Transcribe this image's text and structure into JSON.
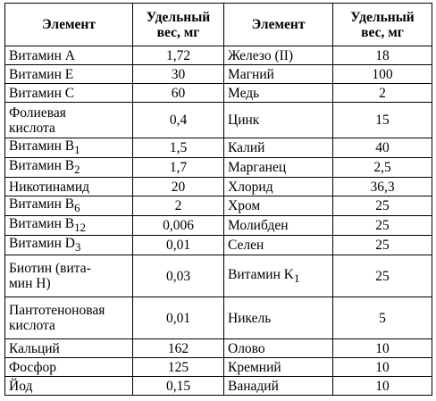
{
  "headers": {
    "element1": "Элемент",
    "weight1_line1": "Удельный",
    "weight1_line2": "вес, мг",
    "element2": "Элемент",
    "weight2_line1": "Удельный",
    "weight2_line2": "вес, мг"
  },
  "rows": [
    {
      "n1": "Витамин A",
      "s1": "",
      "v1": "1,72",
      "n2": "Железо (II)",
      "v2": "18"
    },
    {
      "n1": "Витамин E",
      "s1": "",
      "v1": "30",
      "n2": "Магний",
      "v2": "100"
    },
    {
      "n1": "Витамин C",
      "s1": "",
      "v1": "60",
      "n2": "Медь",
      "v2": "2"
    },
    {
      "n1a": "Фолиевая",
      "n1b": "кислота",
      "v1": "0,4",
      "n2": "Цинк",
      "v2": "15"
    },
    {
      "n1": "Витамин B",
      "s1": "1",
      "v1": "1,5",
      "n2": "Калий",
      "v2": "40"
    },
    {
      "n1": "Витамин B",
      "s1": "2",
      "v1": "1,7",
      "n2": "Марганец",
      "v2": "2,5"
    },
    {
      "n1": "Никотинамид",
      "s1": "",
      "v1": "20",
      "n2": "Хлорид",
      "v2": "36,3"
    },
    {
      "n1": "Витамин B",
      "s1": "6",
      "v1": "2",
      "n2": "Хром",
      "v2": "25"
    },
    {
      "n1": "Витамин B",
      "s1": "12",
      "v1": "0,006",
      "n2": "Молибден",
      "v2": "25"
    },
    {
      "n1": "Витамин D",
      "s1": "3",
      "v1": "0,01",
      "n2": "Селен",
      "v2": "25"
    },
    {
      "n1a": "Биотин (вита-",
      "n1b": "мин H)",
      "v1": "0,03",
      "n2": "Витамин K",
      "s2": "1",
      "v2": "25"
    },
    {
      "n1a": "Пантотеноновая",
      "n1b": "кислота",
      "v1": "0,01",
      "n2": "Никель",
      "v2": "5"
    },
    {
      "n1": "Кальций",
      "s1": "",
      "v1": "162",
      "n2": "Олово",
      "v2": "10"
    },
    {
      "n1": "Фосфор",
      "s1": "",
      "v1": "125",
      "n2": "Кремний",
      "v2": "10"
    },
    {
      "n1": "Йод",
      "s1": "",
      "v1": "0,15",
      "n2": "Ванадий",
      "v2": "10"
    }
  ]
}
